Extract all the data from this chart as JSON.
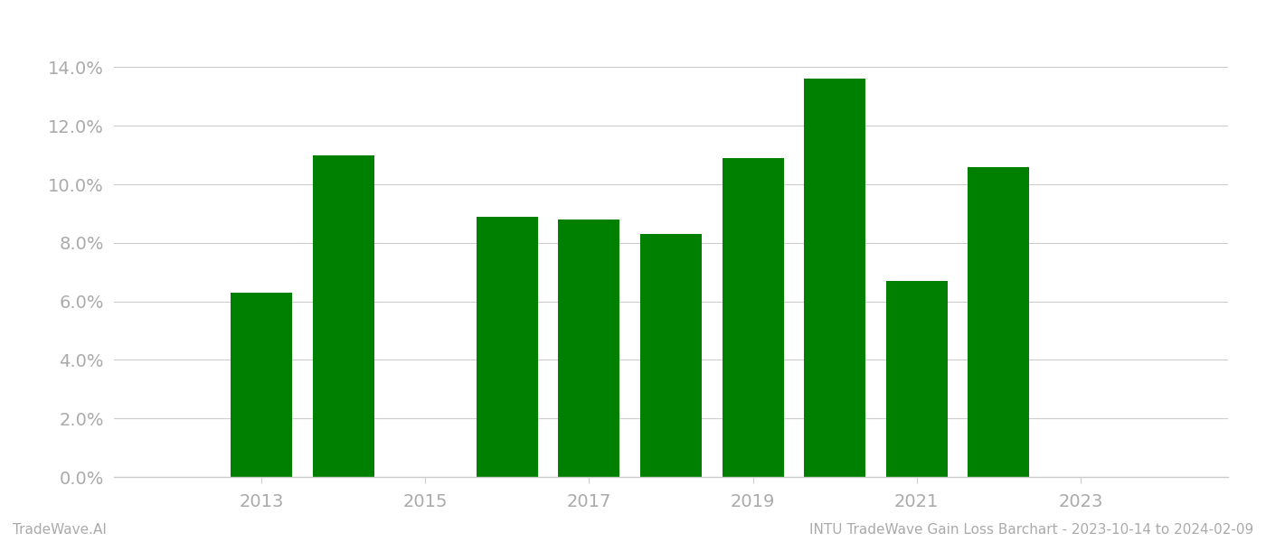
{
  "years": [
    2013,
    2014,
    2016,
    2017,
    2018,
    2019,
    2020,
    2021,
    2022
  ],
  "values": [
    0.063,
    0.11,
    0.089,
    0.088,
    0.083,
    0.109,
    0.136,
    0.067,
    0.106
  ],
  "bar_color": "#008000",
  "background_color": "#ffffff",
  "grid_color": "#cccccc",
  "xlabel_color": "#aaaaaa",
  "ylabel_color": "#aaaaaa",
  "xtick_labels": [
    2013,
    2015,
    2017,
    2019,
    2021,
    2023
  ],
  "ylim": [
    0,
    0.15
  ],
  "ytick_values": [
    0.0,
    0.02,
    0.04,
    0.06,
    0.08,
    0.1,
    0.12,
    0.14
  ],
  "footer_left": "TradeWave.AI",
  "footer_right": "INTU TradeWave Gain Loss Barchart - 2023-10-14 to 2024-02-09",
  "footer_color": "#aaaaaa",
  "bar_width": 0.75,
  "figsize": [
    14.0,
    6.0
  ],
  "dpi": 100,
  "xlim_left": 2011.2,
  "xlim_right": 2024.8
}
